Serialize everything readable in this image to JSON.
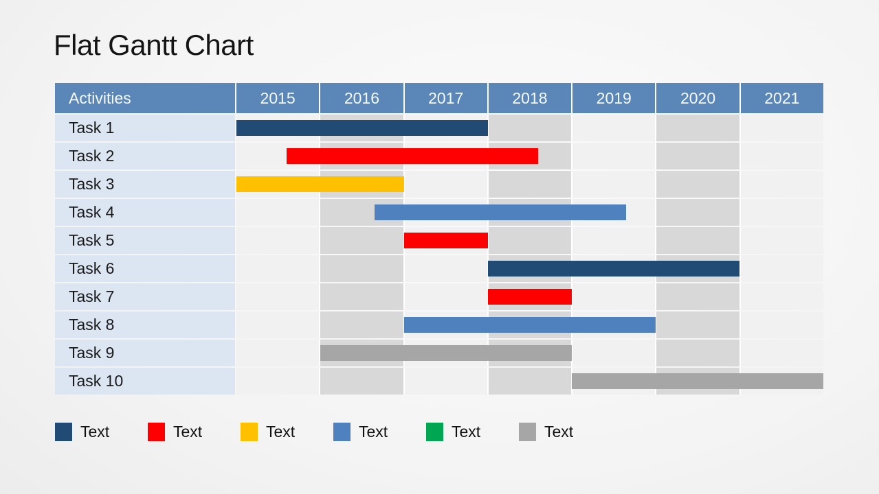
{
  "title": "Flat Gantt Chart",
  "table": {
    "activities_label": "Activities"
  },
  "colors": {
    "header_bg": "#5B87B8",
    "label_cell_bg": "#DCE6F2",
    "col_light": "#F1F1F1",
    "col_shaded": "#D8D8D8",
    "navy": "#214A75",
    "red": "#FF0000",
    "gold": "#FFC000",
    "blue": "#4E81BD",
    "green": "#00A651",
    "gray": "#A6A6A6"
  },
  "chart_data": {
    "type": "gantt",
    "title": "Flat Gantt Chart",
    "x_axis": {
      "labels": [
        "2015",
        "2016",
        "2017",
        "2018",
        "2019",
        "2020",
        "2021"
      ],
      "range": [
        2015,
        2022
      ],
      "shaded_columns": [
        "2016",
        "2018",
        "2020"
      ]
    },
    "y_axis_header": "Activities",
    "tasks": [
      {
        "name": "Task 1",
        "start": 2015.0,
        "end": 2018.0,
        "color": "#214A75"
      },
      {
        "name": "Task 2",
        "start": 2015.6,
        "end": 2018.6,
        "color": "#FF0000"
      },
      {
        "name": "Task 3",
        "start": 2015.0,
        "end": 2017.0,
        "color": "#FFC000"
      },
      {
        "name": "Task 4",
        "start": 2016.65,
        "end": 2019.65,
        "color": "#4E81BD"
      },
      {
        "name": "Task 5",
        "start": 2017.0,
        "end": 2018.0,
        "color": "#FF0000"
      },
      {
        "name": "Task 6",
        "start": 2018.0,
        "end": 2021.0,
        "color": "#214A75"
      },
      {
        "name": "Task 7",
        "start": 2018.0,
        "end": 2019.0,
        "color": "#FF0000"
      },
      {
        "name": "Task 8",
        "start": 2017.0,
        "end": 2020.0,
        "color": "#4E81BD"
      },
      {
        "name": "Task 9",
        "start": 2016.0,
        "end": 2019.0,
        "color": "#A6A6A6"
      },
      {
        "name": "Task 10",
        "start": 2019.0,
        "end": 2022.0,
        "color": "#A6A6A6"
      }
    ],
    "legend_position": "bottom"
  },
  "legend": {
    "items": [
      {
        "label": "Text",
        "color": "#214A75"
      },
      {
        "label": "Text",
        "color": "#FF0000"
      },
      {
        "label": "Text",
        "color": "#FFC000"
      },
      {
        "label": "Text",
        "color": "#4E81BD"
      },
      {
        "label": "Text",
        "color": "#00A651"
      },
      {
        "label": "Text",
        "color": "#A6A6A6"
      }
    ]
  }
}
